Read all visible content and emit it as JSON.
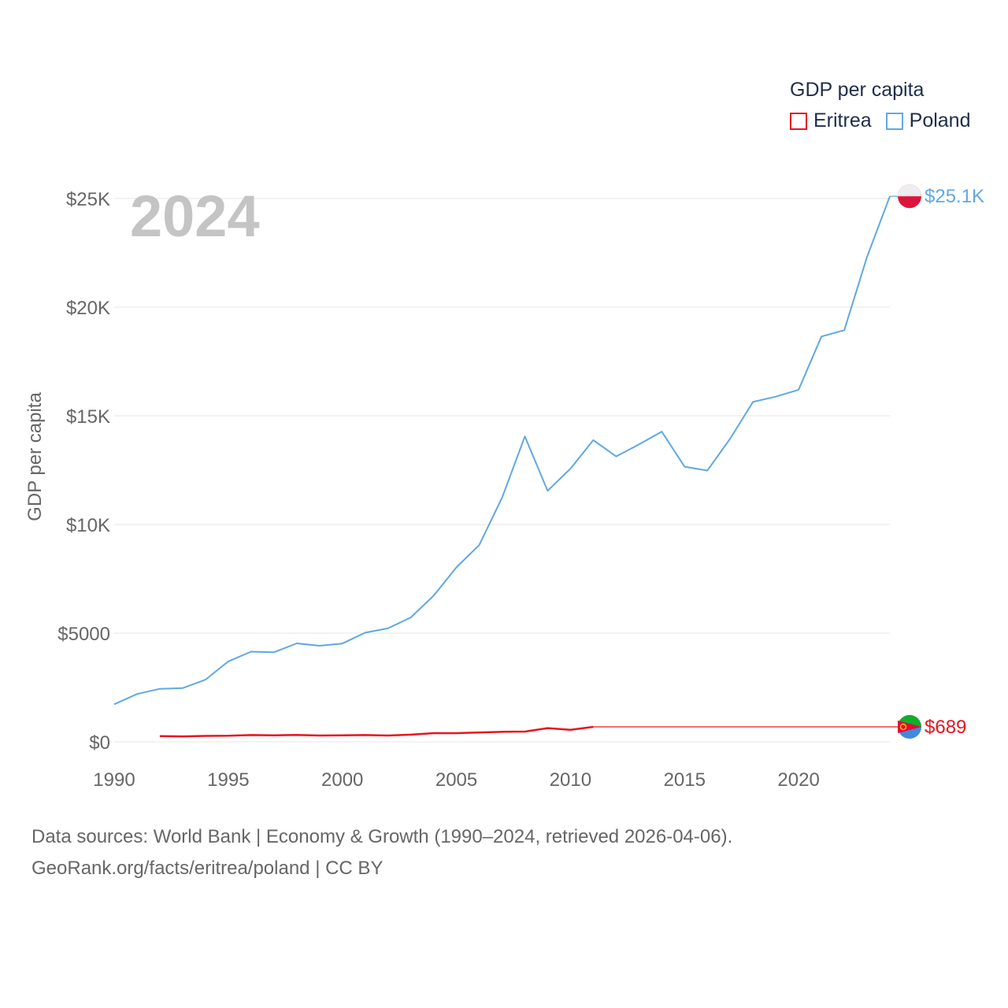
{
  "legend": {
    "title": "GDP per capita",
    "items": [
      {
        "label": "Eritrea",
        "color": "#e8141e"
      },
      {
        "label": "Poland",
        "color": "#5fa8e3"
      }
    ]
  },
  "footer": {
    "line1": "Data sources: World Bank | Economy & Growth (1990–2024, retrieved 2026-04-06).",
    "line2": "GeoRank.org/facts/eritrea/poland | CC BY"
  },
  "chart_data": {
    "type": "line",
    "title": "GDP per capita",
    "year_label": "2024",
    "xlabel": "",
    "ylabel": "GDP per capita",
    "xlim": [
      1990,
      2024
    ],
    "ylim": [
      0,
      25000
    ],
    "x_ticks": [
      1990,
      1995,
      2000,
      2005,
      2010,
      2015,
      2020
    ],
    "x_tick_labels": [
      "1990",
      "1995",
      "2000",
      "2005",
      "2010",
      "2015",
      "2020"
    ],
    "y_ticks": [
      0,
      5000,
      10000,
      15000,
      20000,
      25000
    ],
    "y_tick_labels": [
      "$0",
      "$5000",
      "$10K",
      "$15K",
      "$20K",
      "$25K"
    ],
    "grid": true,
    "series": [
      {
        "name": "Poland",
        "color": "#5fa8e3",
        "end_label": "$25.1K",
        "x": [
          1990,
          1991,
          1992,
          1993,
          1994,
          1995,
          1996,
          1997,
          1998,
          1999,
          2000,
          2001,
          2002,
          2003,
          2004,
          2005,
          2006,
          2007,
          2008,
          2009,
          2010,
          2011,
          2012,
          2013,
          2014,
          2015,
          2016,
          2017,
          2018,
          2019,
          2020,
          2021,
          2022,
          2023,
          2024
        ],
        "values": [
          1730,
          2200,
          2440,
          2470,
          2860,
          3700,
          4150,
          4120,
          4530,
          4420,
          4520,
          5020,
          5220,
          5720,
          6720,
          8030,
          9050,
          11230,
          14050,
          11550,
          12570,
          13880,
          13130,
          13680,
          14270,
          12660,
          12480,
          13950,
          15640,
          15880,
          16200,
          18650,
          18940,
          22310,
          25100
        ]
      },
      {
        "name": "Eritrea",
        "color": "#e8141e",
        "end_label": "$689",
        "x": [
          1992,
          1993,
          1994,
          1995,
          1996,
          1997,
          1998,
          1999,
          2000,
          2001,
          2002,
          2003,
          2004,
          2005,
          2006,
          2007,
          2008,
          2009,
          2010,
          2011
        ],
        "values": [
          260,
          250,
          270,
          280,
          310,
          300,
          320,
          290,
          300,
          310,
          290,
          330,
          400,
          400,
          430,
          460,
          470,
          630,
          550,
          689
        ]
      }
    ]
  }
}
